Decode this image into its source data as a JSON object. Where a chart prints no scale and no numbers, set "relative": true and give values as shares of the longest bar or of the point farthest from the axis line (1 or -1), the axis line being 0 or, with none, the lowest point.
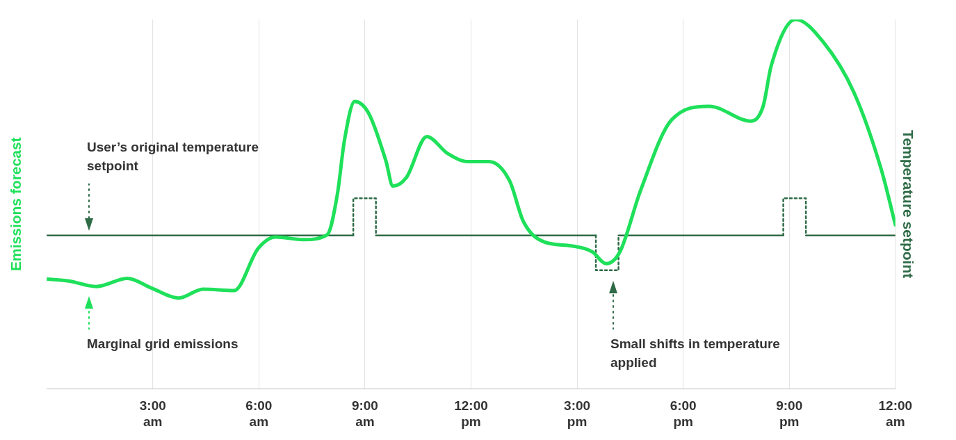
{
  "chart_data": {
    "type": "line",
    "relative": true,
    "ylabel": "Emissions forecast",
    "y2label": "Temperature setpoint",
    "xlim": [
      0,
      24
    ],
    "xticks": [
      {
        "value": 3,
        "label": "3:00 am"
      },
      {
        "value": 6,
        "label": "6:00 am"
      },
      {
        "value": 9,
        "label": "9:00 am"
      },
      {
        "value": 12,
        "label": "12:00 pm"
      },
      {
        "value": 15,
        "label": "3:00 pm"
      },
      {
        "value": 18,
        "label": "6:00 pm"
      },
      {
        "value": 21,
        "label": "9:00 pm"
      },
      {
        "value": 24,
        "label": "12:00 am"
      }
    ],
    "grid": "x",
    "legend": false,
    "marker": "none",
    "tick_labels": "x",
    "series": [
      {
        "color": "#1fe05a",
        "line_style": "solid",
        "x": [
          0,
          0.62,
          1.4,
          2.28,
          2.96,
          3.74,
          4.42,
          5.3,
          5.98,
          6.47,
          7.25,
          7.93,
          8.22,
          8.42,
          8.71,
          9.1,
          9.59,
          9.79,
          10.17,
          10.75,
          11.34,
          11.92,
          12.51,
          13.09,
          13.48,
          14.06,
          14.84,
          15.43,
          15.82,
          16.21,
          16.79,
          17.67,
          18.74,
          19.91,
          20.26,
          20.49,
          21.18,
          21.96,
          22.83,
          23.61,
          24
        ],
        "values": [
          0.297,
          0.292,
          0.277,
          0.299,
          0.273,
          0.246,
          0.27,
          0.266,
          0.38,
          0.411,
          0.404,
          0.417,
          0.527,
          0.673,
          0.778,
          0.747,
          0.618,
          0.549,
          0.572,
          0.683,
          0.637,
          0.615,
          0.615,
          0.563,
          0.453,
          0.398,
          0.387,
          0.371,
          0.339,
          0.371,
          0.536,
          0.728,
          0.765,
          0.725,
          0.765,
          0.875,
          1,
          0.939,
          0.802,
          0.591,
          0.444
        ]
      },
      {
        "color": "#2e6b46",
        "line_style": "solid",
        "axis": "y2",
        "x": [
          0,
          8.67,
          9,
          9.31,
          15.53,
          15.85,
          16.17,
          20.83,
          21.15,
          21.47,
          24
        ],
        "values": [
          0.415,
          0.415,
          null,
          0.415,
          0.415,
          null,
          0.415,
          0.415,
          null,
          0.415,
          0.415
        ]
      },
      {
        "color": "#2e6b46",
        "line_style": "dotted",
        "axis": "y2",
        "x": [
          8.67,
          8.67,
          9.31,
          9.31,
          9.5,
          15.53,
          15.53,
          16.17,
          16.17,
          16.5,
          20.83,
          20.83,
          21.47,
          21.47
        ],
        "values": [
          0.415,
          0.516,
          0.516,
          0.415,
          null,
          0.415,
          0.321,
          0.321,
          0.415,
          null,
          0.415,
          0.516,
          0.516,
          0.415
        ]
      }
    ],
    "annotations": [
      "User’s original temperature setpoint",
      "Marginal grid emissions",
      "Small shifts in temperature applied"
    ]
  }
}
